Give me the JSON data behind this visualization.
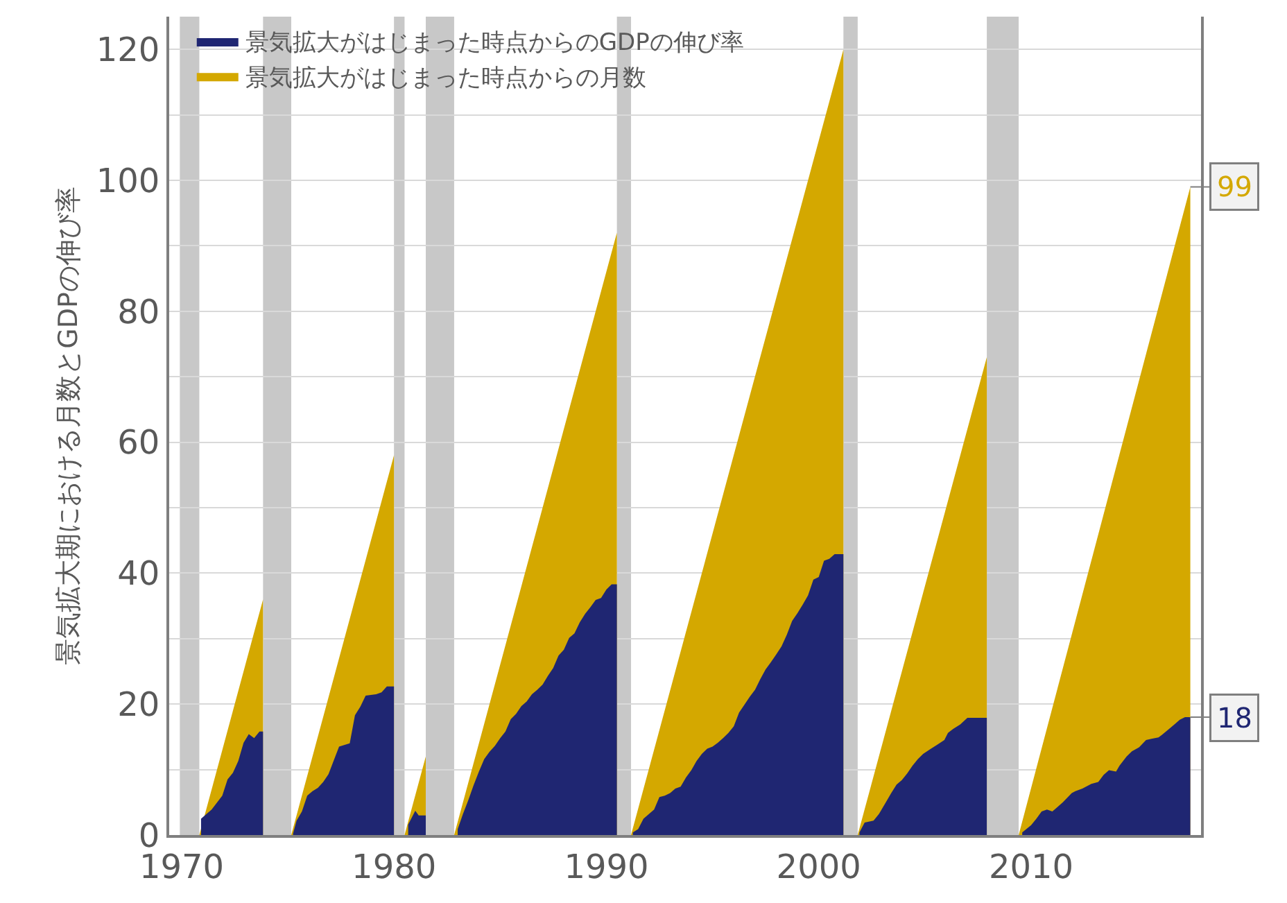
{
  "chart_data": {
    "type": "area",
    "ylabel": "景気拡大期における月数とGDPの伸び率",
    "series": [
      {
        "name": "景気拡大がはじまった時点からのGDPの伸び率",
        "color": "#1f2672",
        "x": [
          "1970-12",
          "1971-06",
          "1971-12",
          "1972-03",
          "1972-06",
          "1972-09",
          "1972-12",
          "1973-03",
          "1973-06",
          "1973-09",
          "1973-11",
          "1974-06",
          "1975-04",
          "1975-06",
          "1975-09",
          "1975-12",
          "1976-03",
          "1976-06",
          "1976-09",
          "1976-12",
          "1977-03",
          "1977-06",
          "1977-12",
          "1978-03",
          "1978-06",
          "1978-09",
          "1979-03",
          "1979-06",
          "1979-09",
          "1980-01",
          "1980-04",
          "1980-09",
          "1981-01",
          "1981-03",
          "1981-07",
          "1982-03",
          "1983-01",
          "1983-04",
          "1983-07",
          "1983-10",
          "1984-01",
          "1984-04",
          "1984-07",
          "1984-10",
          "1985-01",
          "1985-04",
          "1985-07",
          "1985-10",
          "1986-01",
          "1986-04",
          "1986-07",
          "1986-10",
          "1987-01",
          "1987-04",
          "1987-07",
          "1987-10",
          "1988-01",
          "1988-04",
          "1988-07",
          "1988-10",
          "1989-01",
          "1989-04",
          "1989-07",
          "1989-10",
          "1990-01",
          "1990-04",
          "1990-07",
          "1990-12",
          "1991-04",
          "1991-07",
          "1991-10",
          "1992-04",
          "1992-07",
          "1992-10",
          "1993-01",
          "1993-04",
          "1993-07",
          "1993-10",
          "1994-01",
          "1994-04",
          "1994-07",
          "1994-10",
          "1995-01",
          "1995-04",
          "1995-07",
          "1995-10",
          "1996-01",
          "1996-04",
          "1996-07",
          "1996-10",
          "1997-01",
          "1997-04",
          "1997-07",
          "1997-10",
          "1998-01",
          "1998-04",
          "1998-07",
          "1998-10",
          "1999-01",
          "1999-04",
          "1999-07",
          "1999-10",
          "2000-01",
          "2000-04",
          "2000-07",
          "2000-10",
          "2001-03",
          "2001-07",
          "2001-12",
          "2002-03",
          "2002-08",
          "2002-11",
          "2003-03",
          "2003-06",
          "2003-09",
          "2003-12",
          "2004-03",
          "2004-06",
          "2004-09",
          "2004-12",
          "2005-04",
          "2005-08",
          "2005-12",
          "2006-02",
          "2006-05",
          "2006-09",
          "2007-01",
          "2007-12",
          "2008-09",
          "2009-08",
          "2010-01",
          "2010-04",
          "2010-07",
          "2010-10",
          "2011-01",
          "2011-04",
          "2011-07",
          "2011-12",
          "2012-02",
          "2012-06",
          "2012-11",
          "2013-03",
          "2013-06",
          "2013-09",
          "2014-01",
          "2014-03",
          "2014-07",
          "2014-10",
          "2015-02",
          "2015-06",
          "2015-09",
          "2016-01",
          "2016-03",
          "2016-07",
          "2016-10",
          "2017-01",
          "2017-04",
          "2017-07"
        ],
        "values": [
          2.5,
          3.9,
          6.0,
          8.5,
          9.5,
          11.3,
          14.1,
          15.4,
          14.8,
          15.8,
          15.8,
          null,
          0.2,
          2.2,
          3.6,
          6.0,
          6.7,
          7.2,
          8.1,
          9.3,
          11.4,
          13.5,
          14.0,
          18.3,
          19.6,
          21.3,
          21.5,
          21.8,
          22.7,
          22.7,
          null,
          1.6,
          3.7,
          3.0,
          3.0,
          null,
          0.9,
          3.2,
          5.3,
          7.6,
          9.7,
          11.6,
          12.7,
          13.6,
          14.8,
          15.8,
          17.7,
          18.5,
          19.7,
          20.4,
          21.5,
          22.2,
          23.0,
          24.3,
          25.5,
          27.4,
          28.3,
          30.1,
          30.8,
          32.5,
          33.8,
          34.8,
          35.9,
          36.2,
          37.5,
          38.3,
          38.3,
          null,
          0.4,
          0.9,
          2.5,
          3.9,
          5.8,
          6.0,
          6.4,
          7.1,
          7.4,
          8.8,
          9.9,
          11.3,
          12.4,
          13.2,
          13.5,
          14.1,
          14.8,
          15.6,
          16.6,
          18.7,
          19.9,
          21.1,
          22.2,
          23.8,
          25.3,
          26.4,
          27.6,
          28.8,
          30.6,
          32.7,
          33.9,
          35.2,
          36.6,
          39.0,
          39.4,
          41.9,
          42.2,
          42.9,
          42.9,
          null,
          0.4,
          1.9,
          2.2,
          3.2,
          5.0,
          6.4,
          7.7,
          8.4,
          9.4,
          10.6,
          11.6,
          12.4,
          13.1,
          13.8,
          14.5,
          15.6,
          16.2,
          16.9,
          17.9,
          17.9,
          null,
          0.4,
          1.5,
          2.5,
          3.6,
          3.9,
          3.6,
          4.3,
          5.0,
          6.4,
          6.7,
          7.1,
          7.8,
          8.1,
          9.2,
          9.9,
          9.7,
          10.6,
          12.0,
          12.8,
          13.4,
          14.5,
          14.7,
          14.9,
          15.3,
          16.2,
          16.9,
          17.6,
          18.0,
          18.0
        ]
      },
      {
        "name": "景気拡大がはじまった時点からの月数",
        "color": "#d4a800",
        "x": [
          "1970-11",
          "1973-11",
          "1974-06",
          "1975-03",
          "1980-01",
          "1980-04",
          "1980-07",
          "1981-07",
          "1982-03",
          "1982-11",
          "1990-07",
          "1990-12",
          "1991-03",
          "2001-03",
          "2001-07",
          "2001-11",
          "2007-12",
          "2008-09",
          "2009-06",
          "2017-07"
        ],
        "values": [
          0,
          36,
          null,
          0,
          58,
          null,
          0,
          12,
          null,
          0,
          92,
          null,
          0,
          120,
          null,
          0,
          73,
          null,
          0,
          99
        ]
      }
    ],
    "annotations": [
      {
        "text": "99",
        "x": "2017-07",
        "y": 99
      },
      {
        "text": "18",
        "x": "2017-07",
        "y": 18
      }
    ],
    "bands": [
      {
        "axis": "x",
        "from": "1969-12",
        "to": "1970-11",
        "color": "#c8c8c8"
      },
      {
        "axis": "x",
        "from": "1973-11",
        "to": "1975-03",
        "color": "#c8c8c8"
      },
      {
        "axis": "x",
        "from": "1980-01",
        "to": "1980-07",
        "color": "#c8c8c8"
      },
      {
        "axis": "x",
        "from": "1981-07",
        "to": "1982-11",
        "color": "#c8c8c8"
      },
      {
        "axis": "x",
        "from": "1990-07",
        "to": "1991-03",
        "color": "#c8c8c8"
      },
      {
        "axis": "x",
        "from": "2001-03",
        "to": "2001-11",
        "color": "#c8c8c8"
      },
      {
        "axis": "x",
        "from": "2007-12",
        "to": "2009-06",
        "color": "#c8c8c8"
      }
    ],
    "xlim": [
      "1969-06",
      "2018-01"
    ],
    "xticks": [
      "1970",
      "1980",
      "1990",
      "2000",
      "2010"
    ],
    "ylim": [
      0,
      125
    ],
    "yticks": [
      0,
      {
        "value": 10,
        "label": null
      },
      20,
      {
        "value": 30,
        "label": null
      },
      40,
      {
        "value": 50,
        "label": null
      },
      60,
      {
        "value": 70,
        "label": null
      },
      80,
      {
        "value": 90,
        "label": null
      },
      100,
      {
        "value": 110,
        "label": null
      },
      120
    ],
    "grid": "y",
    "legend": "top left"
  }
}
